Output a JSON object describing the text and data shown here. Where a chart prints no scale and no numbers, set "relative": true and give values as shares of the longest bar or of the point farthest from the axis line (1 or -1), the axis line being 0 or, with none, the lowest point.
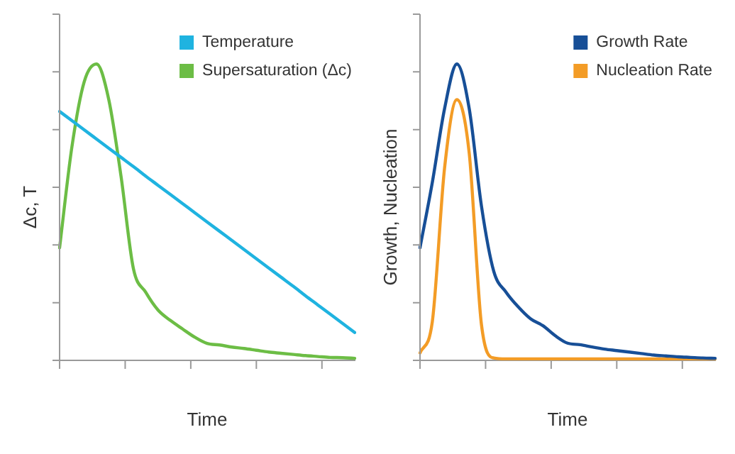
{
  "chart_data": [
    {
      "type": "line",
      "relative": true,
      "ylabel": "Δc, T",
      "xlabel": "Time",
      "legend": "top right",
      "categories": [
        null,
        null,
        null,
        null,
        null,
        null,
        null,
        null,
        null,
        null,
        null,
        null,
        null,
        null,
        null,
        null,
        null,
        null,
        null,
        null,
        null,
        null,
        null,
        null,
        null
      ],
      "series": [
        {
          "name": "Temperature",
          "color": "#1fb3e0",
          "values": [
            0.84,
            0.809,
            0.778,
            0.747,
            0.716,
            0.685,
            0.654,
            0.622,
            0.591,
            0.56,
            0.529,
            0.498,
            0.467,
            0.436,
            0.405,
            0.374,
            0.343,
            0.312,
            0.281,
            0.25,
            0.218,
            0.187,
            0.156,
            0.125,
            0.094
          ]
        },
        {
          "name": "Supersaturation (Δc)",
          "color": "#6cbd45",
          "values": [
            0.38,
            0.72,
            0.94,
            1,
            0.88,
            0.62,
            0.31,
            0.23,
            0.17,
            0.135,
            0.106,
            0.078,
            0.057,
            0.052,
            0.045,
            0.04,
            0.034,
            0.028,
            0.024,
            0.02,
            0.016,
            0.013,
            0.01,
            0.009,
            0.007
          ]
        }
      ]
    },
    {
      "type": "line",
      "relative": true,
      "ylabel": "Growth, Nucleation",
      "xlabel": "Time",
      "legend": "top right",
      "categories": [
        null,
        null,
        null,
        null,
        null,
        null,
        null,
        null,
        null,
        null,
        null,
        null,
        null,
        null,
        null,
        null,
        null,
        null,
        null,
        null,
        null,
        null,
        null,
        null,
        null
      ],
      "series": [
        {
          "name": "Growth Rate",
          "color": "#174f97",
          "values": [
            0.38,
            0.6,
            0.85,
            1,
            0.85,
            0.52,
            0.3,
            0.23,
            0.18,
            0.14,
            0.117,
            0.083,
            0.058,
            0.053,
            0.045,
            0.038,
            0.033,
            0.028,
            0.023,
            0.018,
            0.015,
            0.012,
            0.01,
            0.008,
            0.007
          ]
        },
        {
          "name": "Nucleation Rate",
          "color": "#f39c26",
          "values": [
            0.025,
            0.13,
            0.65,
            0.88,
            0.7,
            0.12,
            0.008,
            0.005,
            0.005,
            0.005,
            0.005,
            0.005,
            0.005,
            0.005,
            0.005,
            0.005,
            0.005,
            0.005,
            0.005,
            0.005,
            0.005,
            0.005,
            0.005,
            0.005,
            0.005
          ]
        }
      ]
    }
  ]
}
